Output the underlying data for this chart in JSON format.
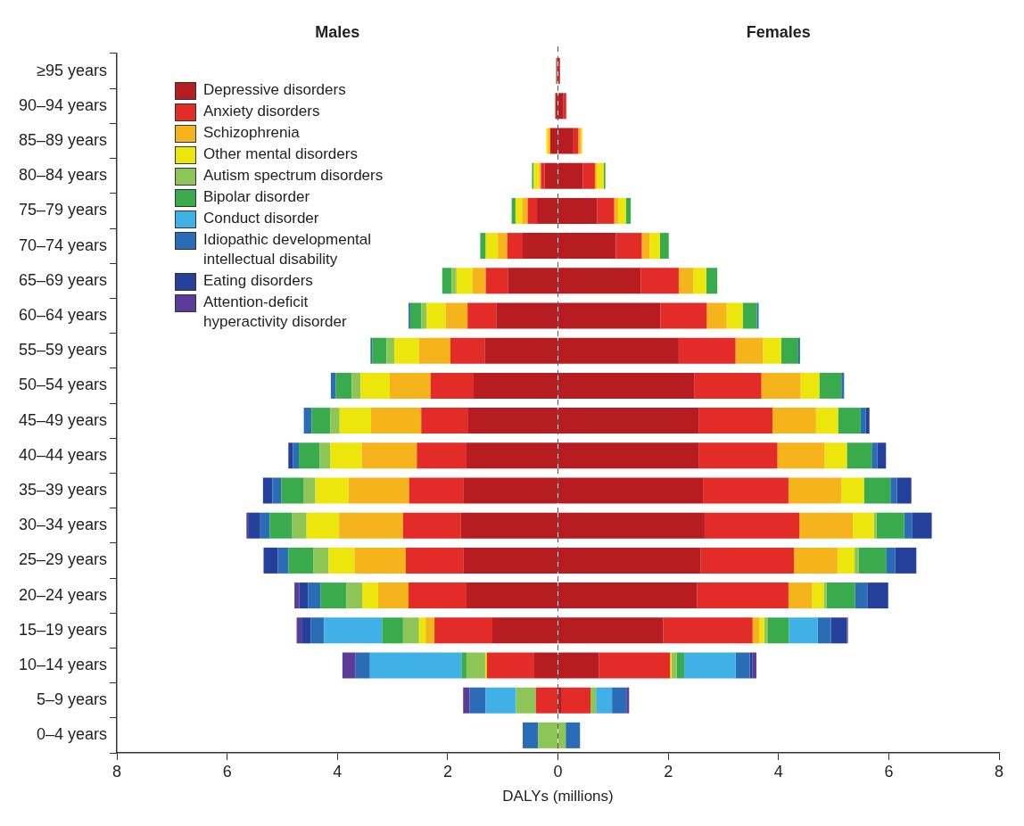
{
  "chart_data": {
    "type": "bar",
    "orientation": "horizontal",
    "stacked": true,
    "xlabel": "DALYs (millions)",
    "annotations": [
      "Males",
      "Females"
    ],
    "categories": [
      "≥95 years",
      "90–94 years",
      "85–89 years",
      "80–84 years",
      "75–79 years",
      "70–74 years",
      "65–69 years",
      "60–64 years",
      "55–59 years",
      "50–54 years",
      "45–49 years",
      "40–44 years",
      "35–39 years",
      "30–34 years",
      "25–29 years",
      "20–24 years",
      "15–19 years",
      "10–14 years",
      "5–9 years",
      "0–4 years"
    ],
    "xlim": [
      -8,
      8
    ],
    "xticks": [
      {
        "value": -8,
        "label": "8"
      },
      {
        "value": -6,
        "label": "6"
      },
      {
        "value": -4,
        "label": "4"
      },
      {
        "value": -2,
        "label": "2"
      },
      0,
      2,
      4,
      6,
      8
    ],
    "grid": false,
    "legend": "top left",
    "ref_lines": [
      {
        "axis": "x",
        "value": 0,
        "color": "#555555",
        "line_style": "dashed"
      }
    ],
    "series": [
      {
        "name": "Depressive disorders",
        "color": "#b71c20",
        "values": [
          -0.02,
          -0.04,
          -0.14,
          -0.24,
          -0.38,
          -0.64,
          -0.91,
          -1.12,
          -1.33,
          -1.53,
          -1.64,
          -1.66,
          -1.72,
          -1.76,
          -1.71,
          -1.66,
          -1.19,
          -0.43,
          null,
          null
        ]
      },
      {
        "name": "Anxiety disorders",
        "color": "#e32b27",
        "values": [
          -0.01,
          -0.01,
          null,
          -0.07,
          -0.17,
          -0.28,
          -0.4,
          -0.52,
          -0.62,
          -0.78,
          -0.84,
          -0.9,
          -0.98,
          -1.05,
          -1.05,
          -1.05,
          -1.05,
          -0.86,
          -0.4,
          null
        ]
      },
      {
        "name": "Schizophrenia",
        "color": "#f5b41c",
        "values": [
          -0.01,
          null,
          -0.03,
          -0.03,
          -0.1,
          -0.17,
          -0.24,
          -0.4,
          -0.57,
          -0.74,
          -0.91,
          -1.0,
          -1.1,
          -1.16,
          -0.93,
          -0.55,
          -0.16,
          null,
          null,
          null
        ]
      },
      {
        "name": "Other mental disorders",
        "color": "#ede60c",
        "values": [
          null,
          null,
          -0.04,
          -0.1,
          -0.12,
          -0.22,
          -0.29,
          -0.34,
          -0.45,
          -0.53,
          -0.57,
          -0.57,
          -0.6,
          -0.59,
          -0.47,
          -0.29,
          -0.12,
          -0.03,
          null,
          null
        ]
      },
      {
        "name": "Autism spectrum disorders",
        "color": "#8dc556",
        "values": [
          null,
          null,
          null,
          null,
          null,
          null,
          -0.09,
          -0.1,
          -0.14,
          -0.16,
          -0.17,
          -0.19,
          -0.22,
          -0.26,
          -0.28,
          -0.29,
          -0.29,
          -0.34,
          -0.36,
          -0.36
        ]
      },
      {
        "name": "Bipolar disorder",
        "color": "#3aab4c",
        "values": [
          null,
          null,
          null,
          -0.03,
          -0.07,
          -0.1,
          -0.17,
          -0.2,
          -0.26,
          -0.29,
          -0.34,
          -0.38,
          -0.4,
          -0.41,
          -0.45,
          -0.47,
          -0.38,
          -0.09,
          null,
          null
        ]
      },
      {
        "name": "Conduct disorder",
        "color": "#3fb1e7",
        "values": [
          null,
          null,
          null,
          null,
          null,
          null,
          null,
          null,
          null,
          null,
          null,
          null,
          null,
          null,
          null,
          null,
          -1.05,
          -1.66,
          -0.55,
          null
        ]
      },
      {
        "name": "Idiopathic developmental intellectual disability",
        "color": "#2a6db6",
        "values": [
          null,
          null,
          null,
          null,
          null,
          null,
          null,
          -0.03,
          -0.03,
          -0.09,
          -0.14,
          -0.11,
          -0.16,
          -0.17,
          -0.19,
          -0.22,
          -0.24,
          -0.26,
          -0.29,
          -0.28
        ]
      },
      {
        "name": "Eating disorders",
        "color": "#25409a",
        "values": [
          null,
          null,
          null,
          null,
          null,
          null,
          null,
          null,
          null,
          null,
          null,
          -0.08,
          -0.17,
          -0.22,
          -0.26,
          -0.16,
          -0.17,
          null,
          null,
          null
        ]
      },
      {
        "name": "Attention-deficit hyperactivity disorder",
        "color": "#5b3d98",
        "values": [
          null,
          null,
          null,
          null,
          null,
          null,
          null,
          null,
          null,
          null,
          null,
          null,
          null,
          -0.03,
          null,
          -0.09,
          -0.09,
          -0.24,
          -0.12,
          null
        ]
      },
      {
        "color": "#b71c20",
        "values": [
          0.03,
          0.1,
          0.28,
          0.45,
          0.71,
          1.05,
          1.5,
          1.86,
          2.19,
          2.47,
          2.55,
          2.55,
          2.63,
          2.66,
          2.59,
          2.52,
          1.91,
          0.74,
          0.07,
          null
        ]
      },
      {
        "color": "#e32b27",
        "values": [
          0.01,
          0.05,
          0.09,
          0.22,
          0.31,
          0.47,
          0.69,
          0.84,
          1.03,
          1.22,
          1.34,
          1.43,
          1.55,
          1.72,
          1.69,
          1.66,
          1.62,
          1.29,
          0.52,
          null
        ]
      },
      {
        "color": "#f5b41c",
        "values": [
          null,
          null,
          0.05,
          0.04,
          0.07,
          0.14,
          0.26,
          0.36,
          0.5,
          0.71,
          0.79,
          0.86,
          0.96,
          0.97,
          0.79,
          0.43,
          0.12,
          0.02,
          null,
          null
        ]
      },
      {
        "color": "#ede60c",
        "values": [
          null,
          null,
          0.02,
          0.12,
          0.14,
          0.19,
          0.24,
          0.29,
          0.33,
          0.34,
          0.4,
          0.4,
          0.41,
          0.38,
          0.31,
          0.21,
          0.09,
          0.01,
          null,
          null
        ]
      },
      {
        "color": "#8dc556",
        "values": [
          null,
          null,
          null,
          null,
          null,
          null,
          null,
          null,
          null,
          null,
          null,
          null,
          null,
          0.05,
          0.07,
          0.05,
          0.07,
          0.09,
          0.1,
          0.14
        ]
      },
      {
        "color": "#3aab4c",
        "values": [
          null,
          null,
          null,
          0.03,
          0.09,
          0.16,
          0.2,
          0.26,
          0.31,
          0.4,
          0.41,
          0.45,
          0.48,
          0.5,
          0.5,
          0.52,
          0.38,
          0.14,
          null,
          null
        ]
      },
      {
        "color": "#3fb1e7",
        "values": [
          null,
          null,
          null,
          null,
          null,
          null,
          null,
          null,
          null,
          null,
          null,
          null,
          null,
          null,
          null,
          null,
          0.52,
          0.93,
          0.29,
          null
        ]
      },
      {
        "color": "#2a6db6",
        "values": [
          null,
          null,
          null,
          null,
          null,
          null,
          null,
          0.03,
          0.03,
          0.05,
          0.09,
          0.1,
          0.12,
          0.14,
          0.17,
          0.22,
          0.24,
          0.26,
          0.26,
          0.26
        ]
      },
      {
        "color": "#25409a",
        "values": [
          null,
          null,
          null,
          null,
          null,
          null,
          null,
          null,
          null,
          null,
          0.07,
          0.16,
          0.26,
          0.36,
          0.38,
          0.38,
          0.29,
          0.05,
          null,
          null
        ]
      },
      {
        "color": "#5b3d98",
        "values": [
          null,
          null,
          null,
          null,
          null,
          null,
          null,
          null,
          null,
          null,
          null,
          null,
          null,
          null,
          null,
          null,
          0.02,
          0.07,
          0.05,
          null
        ]
      }
    ]
  }
}
